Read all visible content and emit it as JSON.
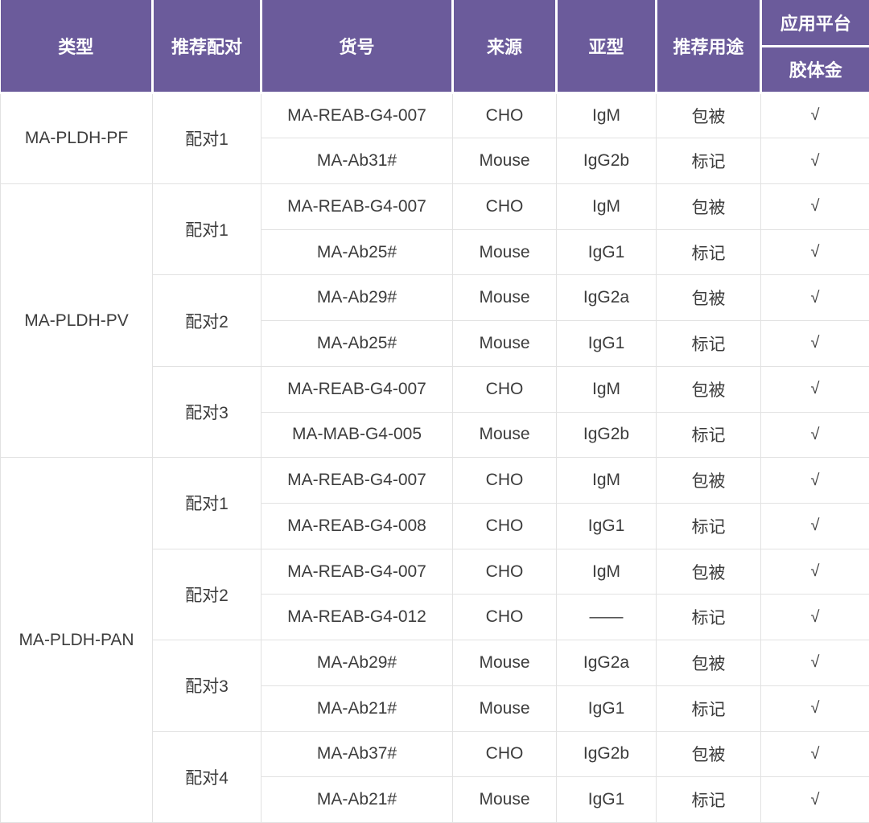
{
  "table": {
    "colors": {
      "header_bg": "#6B5B9B",
      "header_text": "#ffffff",
      "body_text": "#3c3c3c",
      "grid_border": "#e2e2e2",
      "body_bg": "#ffffff"
    },
    "headers": {
      "type": "类型",
      "pairing": "推荐配对",
      "catalog": "货号",
      "source": "来源",
      "subtype": "亚型",
      "usage": "推荐用途",
      "platform": "应用平台",
      "platform_sub": "胶体金"
    },
    "check_mark": "√",
    "groups": [
      {
        "type": "MA-PLDH-PF",
        "pairs": [
          {
            "label": "配对1",
            "rows": [
              {
                "catalog": "MA-REAB-G4-007",
                "source": "CHO",
                "subtype": "IgM",
                "usage": "包被",
                "gold": "√"
              },
              {
                "catalog": "MA-Ab31#",
                "source": "Mouse",
                "subtype": "IgG2b",
                "usage": "标记",
                "gold": "√"
              }
            ]
          }
        ]
      },
      {
        "type": "MA-PLDH-PV",
        "pairs": [
          {
            "label": "配对1",
            "rows": [
              {
                "catalog": "MA-REAB-G4-007",
                "source": "CHO",
                "subtype": "IgM",
                "usage": "包被",
                "gold": "√"
              },
              {
                "catalog": "MA-Ab25#",
                "source": "Mouse",
                "subtype": "IgG1",
                "usage": "标记",
                "gold": "√"
              }
            ]
          },
          {
            "label": "配对2",
            "rows": [
              {
                "catalog": "MA-Ab29#",
                "source": "Mouse",
                "subtype": "IgG2a",
                "usage": "包被",
                "gold": "√"
              },
              {
                "catalog": "MA-Ab25#",
                "source": "Mouse",
                "subtype": "IgG1",
                "usage": "标记",
                "gold": "√"
              }
            ]
          },
          {
            "label": "配对3",
            "rows": [
              {
                "catalog": "MA-REAB-G4-007",
                "source": "CHO",
                "subtype": "IgM",
                "usage": "包被",
                "gold": "√"
              },
              {
                "catalog": "MA-MAB-G4-005",
                "source": "Mouse",
                "subtype": "IgG2b",
                "usage": "标记",
                "gold": "√"
              }
            ]
          }
        ]
      },
      {
        "type": "MA-PLDH-PAN",
        "pairs": [
          {
            "label": "配对1",
            "rows": [
              {
                "catalog": "MA-REAB-G4-007",
                "source": "CHO",
                "subtype": "IgM",
                "usage": "包被",
                "gold": "√"
              },
              {
                "catalog": "MA-REAB-G4-008",
                "source": "CHO",
                "subtype": "IgG1",
                "usage": "标记",
                "gold": "√"
              }
            ]
          },
          {
            "label": "配对2",
            "rows": [
              {
                "catalog": "MA-REAB-G4-007",
                "source": "CHO",
                "subtype": "IgM",
                "usage": "包被",
                "gold": "√"
              },
              {
                "catalog": "MA-REAB-G4-012",
                "source": "CHO",
                "subtype": "——",
                "usage": "标记",
                "gold": "√"
              }
            ]
          },
          {
            "label": "配对3",
            "rows": [
              {
                "catalog": "MA-Ab29#",
                "source": "Mouse",
                "subtype": "IgG2a",
                "usage": "包被",
                "gold": "√"
              },
              {
                "catalog": "MA-Ab21#",
                "source": "Mouse",
                "subtype": "IgG1",
                "usage": "标记",
                "gold": "√"
              }
            ]
          },
          {
            "label": "配对4",
            "rows": [
              {
                "catalog": "MA-Ab37#",
                "source": "CHO",
                "subtype": "IgG2b",
                "usage": "包被",
                "gold": "√"
              },
              {
                "catalog": "MA-Ab21#",
                "source": "Mouse",
                "subtype": "IgG1",
                "usage": "标记",
                "gold": "√"
              }
            ]
          }
        ]
      }
    ]
  }
}
